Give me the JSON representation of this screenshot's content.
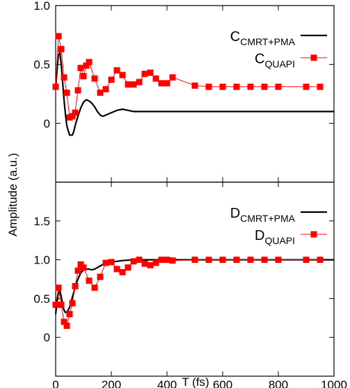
{
  "colors": {
    "model": "#000000",
    "exact": "#ff0000",
    "frame": "#000000"
  },
  "chart_data": [
    {
      "type": "line",
      "panel": "top",
      "xlim": [
        0,
        1000
      ],
      "ylim": [
        -0.5,
        1.0
      ],
      "yticks": [
        0,
        0.5,
        1.0
      ],
      "ytick_labels": [
        "0",
        "0.5",
        "1.0"
      ],
      "legend_position": "top-right",
      "series": [
        {
          "name_main": "C",
          "name_sub": "CMRT+PMA",
          "style": "line",
          "x": [
            0,
            5,
            10,
            15,
            20,
            25,
            30,
            35,
            40,
            45,
            50,
            55,
            60,
            65,
            70,
            80,
            90,
            100,
            110,
            120,
            130,
            140,
            150,
            160,
            170,
            180,
            190,
            200,
            220,
            240,
            260,
            280,
            300,
            350,
            400,
            500,
            600,
            700,
            800,
            900,
            1000
          ],
          "y": [
            0.3,
            0.45,
            0.58,
            0.6,
            0.5,
            0.35,
            0.2,
            0.08,
            -0.02,
            -0.06,
            -0.1,
            -0.1,
            -0.1,
            -0.07,
            -0.02,
            0.06,
            0.13,
            0.18,
            0.2,
            0.19,
            0.17,
            0.14,
            0.1,
            0.07,
            0.06,
            0.07,
            0.08,
            0.09,
            0.11,
            0.12,
            0.11,
            0.1,
            0.1,
            0.1,
            0.1,
            0.1,
            0.1,
            0.1,
            0.1,
            0.1,
            0.1
          ]
        },
        {
          "name_main": "C",
          "name_sub": "QUAPI",
          "style": "line-markers",
          "x": [
            0,
            10,
            20,
            30,
            40,
            50,
            60,
            70,
            80,
            90,
            100,
            110,
            120,
            140,
            160,
            180,
            200,
            220,
            240,
            260,
            280,
            300,
            320,
            340,
            360,
            380,
            400,
            420,
            500,
            550,
            600,
            650,
            700,
            750,
            800,
            900,
            950
          ],
          "y": [
            0.31,
            0.74,
            0.63,
            0.39,
            0.26,
            0.05,
            0.06,
            0.09,
            0.28,
            0.47,
            0.4,
            0.49,
            0.52,
            0.38,
            0.26,
            0.29,
            0.37,
            0.45,
            0.41,
            0.33,
            0.33,
            0.35,
            0.42,
            0.43,
            0.38,
            0.34,
            0.34,
            0.39,
            0.32,
            0.31,
            0.31,
            0.31,
            0.31,
            0.31,
            0.31,
            0.31,
            0.31
          ]
        }
      ]
    },
    {
      "type": "line",
      "panel": "bottom",
      "xlabel": "T (fs)",
      "xlim": [
        0,
        1000
      ],
      "ylim": [
        -0.5,
        2.0
      ],
      "xticks": [
        0,
        200,
        400,
        600,
        800,
        1000
      ],
      "xtick_labels": [
        "0",
        "200",
        "400",
        "600",
        "800",
        "1000"
      ],
      "yticks": [
        0,
        0.5,
        1.0,
        1.5
      ],
      "ytick_labels": [
        "0",
        "0.5",
        "1.0",
        "1.5"
      ],
      "legend_position": "top-right",
      "series": [
        {
          "name_main": "D",
          "name_sub": "CMRT+PMA",
          "style": "line",
          "x": [
            0,
            5,
            10,
            15,
            20,
            25,
            30,
            35,
            40,
            45,
            50,
            55,
            60,
            65,
            70,
            80,
            90,
            100,
            110,
            120,
            130,
            140,
            150,
            160,
            170,
            180,
            190,
            200,
            220,
            240,
            260,
            280,
            300,
            350,
            400,
            500,
            600,
            700,
            800,
            900,
            1000
          ],
          "y": [
            0.3,
            0.45,
            0.58,
            0.6,
            0.53,
            0.42,
            0.35,
            0.32,
            0.33,
            0.35,
            0.39,
            0.45,
            0.52,
            0.58,
            0.65,
            0.75,
            0.83,
            0.87,
            0.88,
            0.88,
            0.87,
            0.88,
            0.9,
            0.92,
            0.94,
            0.95,
            0.96,
            0.97,
            0.98,
            0.99,
            0.995,
            1.0,
            1.0,
            1.0,
            1.0,
            1.0,
            1.0,
            1.0,
            1.0,
            1.0,
            1.0
          ]
        },
        {
          "name_main": "D",
          "name_sub": "QUAPI",
          "style": "line-markers",
          "x": [
            0,
            10,
            20,
            30,
            40,
            50,
            60,
            70,
            80,
            90,
            100,
            120,
            140,
            160,
            180,
            200,
            220,
            240,
            260,
            280,
            300,
            320,
            340,
            360,
            380,
            400,
            420,
            500,
            550,
            600,
            650,
            700,
            750,
            800,
            900,
            950
          ],
          "y": [
            0.42,
            0.64,
            0.42,
            0.2,
            0.15,
            0.3,
            0.44,
            0.66,
            0.86,
            0.94,
            0.9,
            0.73,
            0.64,
            0.78,
            0.96,
            0.97,
            0.88,
            0.84,
            0.9,
            0.98,
            1.0,
            0.95,
            0.93,
            0.96,
            1.0,
            1.0,
            0.99,
            1.0,
            1.0,
            1.0,
            1.0,
            1.0,
            1.0,
            1.0,
            1.0,
            1.0
          ]
        }
      ]
    }
  ],
  "ylabel": "Amplitude (a.u.)"
}
